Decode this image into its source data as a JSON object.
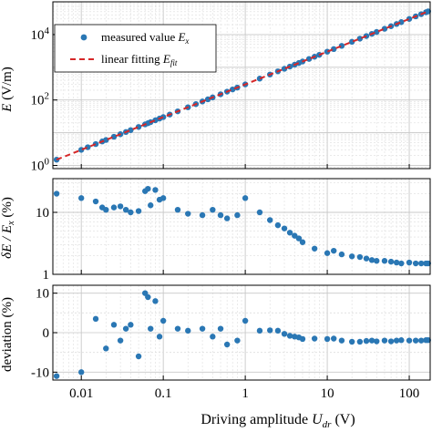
{
  "chart_data": [
    {
      "type": "scatter",
      "panel": "top",
      "xscale": "log",
      "yscale": "log",
      "xlim": [
        0.0045,
        180
      ],
      "ylim": [
        0.8,
        100000
      ],
      "grid": true,
      "yticks": [
        1,
        100,
        10000
      ],
      "ytick_labels": [
        "10^0",
        "10^2",
        "10^4"
      ],
      "ylabel": "E (V/m)",
      "legend": {
        "placement": "top-left",
        "entries": [
          {
            "label": "measured value E_x",
            "marker": "dot"
          },
          {
            "label": "linear fitting E_fit",
            "marker": "dashed-line"
          }
        ]
      },
      "series": [
        {
          "name": "measured value E_x",
          "color": "#2a77b4",
          "x": [
            0.005,
            0.01,
            0.012,
            0.015,
            0.018,
            0.02,
            0.025,
            0.03,
            0.035,
            0.04,
            0.05,
            0.06,
            0.065,
            0.07,
            0.08,
            0.09,
            0.1,
            0.12,
            0.15,
            0.2,
            0.25,
            0.3,
            0.35,
            0.4,
            0.5,
            0.6,
            0.7,
            0.8,
            1.0,
            1.5,
            2.0,
            2.5,
            3.0,
            3.5,
            4.0,
            4.5,
            5.0,
            6.0,
            7.0,
            8.0,
            10,
            12,
            15,
            20,
            25,
            30,
            35,
            40,
            50,
            60,
            70,
            80,
            100,
            120,
            140,
            160,
            170
          ],
          "y": [
            1.5,
            3.0,
            3.6,
            4.5,
            5.4,
            6.0,
            7.5,
            9.0,
            10.5,
            12.0,
            15.0,
            18.0,
            19.5,
            21.0,
            24.0,
            27.0,
            30.0,
            36.0,
            45.0,
            60.0,
            75.0,
            90.0,
            105.0,
            120.0,
            150.0,
            180.0,
            210.0,
            240.0,
            300.0,
            450.0,
            600.0,
            750.0,
            900.0,
            1050.0,
            1200.0,
            1350.0,
            1500.0,
            1800.0,
            2100.0,
            2400.0,
            3000.0,
            3600.0,
            4500.0,
            6000.0,
            7500.0,
            9000.0,
            10500.0,
            12000.0,
            15000.0,
            18000.0,
            21000.0,
            24000.0,
            30000.0,
            36000.0,
            42000.0,
            48000.0,
            51000.0
          ]
        },
        {
          "name": "linear fitting E_fit",
          "color": "#d62728",
          "style": "dashed",
          "x": [
            0.005,
            170
          ],
          "y": [
            1.5,
            51000
          ]
        }
      ]
    },
    {
      "type": "scatter",
      "panel": "middle",
      "xscale": "log",
      "yscale": "log",
      "xlim": [
        0.0045,
        180
      ],
      "ylim": [
        1,
        35
      ],
      "grid": true,
      "yticks": [
        1,
        10
      ],
      "ytick_labels": [
        "1",
        "10"
      ],
      "ylabel": "δE / E_x (%)",
      "series": [
        {
          "name": "",
          "color": "#2a77b4",
          "x": [
            0.005,
            0.01,
            0.015,
            0.018,
            0.02,
            0.025,
            0.03,
            0.035,
            0.04,
            0.05,
            0.06,
            0.065,
            0.07,
            0.08,
            0.09,
            0.1,
            0.15,
            0.2,
            0.3,
            0.4,
            0.5,
            0.6,
            0.8,
            1.0,
            1.5,
            2.0,
            2.5,
            3.0,
            3.5,
            4.0,
            4.5,
            5.0,
            7.0,
            10,
            12,
            15,
            20,
            25,
            30,
            35,
            40,
            50,
            60,
            70,
            80,
            100,
            120,
            140,
            160,
            170
          ],
          "y": [
            20,
            17,
            15,
            12,
            11,
            12,
            12.5,
            11,
            10,
            10.5,
            22,
            24,
            13,
            23,
            16,
            17,
            11,
            9.5,
            9,
            11,
            9,
            8,
            9,
            17,
            10,
            7.5,
            6.2,
            5.5,
            4.7,
            4.2,
            3.8,
            3.3,
            2.6,
            2.2,
            2.4,
            2.1,
            1.95,
            1.9,
            1.8,
            1.7,
            1.65,
            1.65,
            1.6,
            1.55,
            1.5,
            1.55,
            1.5,
            1.5,
            1.5,
            1.5
          ]
        }
      ]
    },
    {
      "type": "scatter",
      "panel": "bottom",
      "xscale": "log",
      "yscale": "linear",
      "xlim": [
        0.0045,
        180
      ],
      "ylim": [
        -12,
        12
      ],
      "grid": true,
      "yticks": [
        -10,
        0,
        10
      ],
      "ytick_labels": [
        "-10",
        "0",
        "10"
      ],
      "xticks": [
        0.01,
        0.1,
        1,
        10,
        100
      ],
      "xtick_labels": [
        "0.01",
        "0.1",
        "1",
        "10",
        "100"
      ],
      "ylabel": "deviation (%)",
      "xlabel": "Driving amplitude U_dr (V)",
      "series": [
        {
          "name": "",
          "color": "#2a77b4",
          "x": [
            0.005,
            0.01,
            0.015,
            0.02,
            0.025,
            0.03,
            0.035,
            0.04,
            0.05,
            0.06,
            0.065,
            0.07,
            0.08,
            0.09,
            0.1,
            0.15,
            0.2,
            0.3,
            0.4,
            0.5,
            0.6,
            0.8,
            1.0,
            1.5,
            2.0,
            2.5,
            3.0,
            3.5,
            4.0,
            4.5,
            5.0,
            7.0,
            10,
            12,
            15,
            20,
            25,
            30,
            35,
            40,
            50,
            60,
            70,
            80,
            100,
            120,
            140,
            160,
            170
          ],
          "y": [
            -11,
            -10,
            3.5,
            -4,
            2,
            -2,
            1,
            2,
            -6,
            10,
            9,
            1,
            8,
            -1,
            3,
            1,
            0.5,
            1,
            -1,
            1,
            -3,
            -2,
            3,
            0.5,
            0.6,
            0.5,
            -0.3,
            -0.8,
            -1,
            -1.2,
            -1.6,
            -1.5,
            -1.6,
            -1.5,
            -2,
            -2.3,
            -2.3,
            -2.1,
            -2,
            -2.2,
            -2,
            -2.2,
            -2,
            -1.9,
            -2,
            -2,
            -2,
            -1.9,
            -1.9
          ]
        }
      ]
    }
  ],
  "figure": {
    "top_ylabel_main": "E",
    "top_ylabel_unit": " (V/m)",
    "mid_ylabel_main": "δE / E",
    "mid_ylabel_sub": "x",
    "mid_ylabel_unit": " (%)",
    "bot_ylabel": "deviation (%)",
    "xlabel_main": "Driving amplitude ",
    "xlabel_italic": "U",
    "xlabel_sub": "dr",
    "xlabel_unit": " (V)",
    "legend_measured_main": "measured value ",
    "legend_measured_var": "E",
    "legend_measured_sub": "x",
    "legend_fit_main": "linear fitting ",
    "legend_fit_var": "E",
    "legend_fit_sub": "fit"
  }
}
